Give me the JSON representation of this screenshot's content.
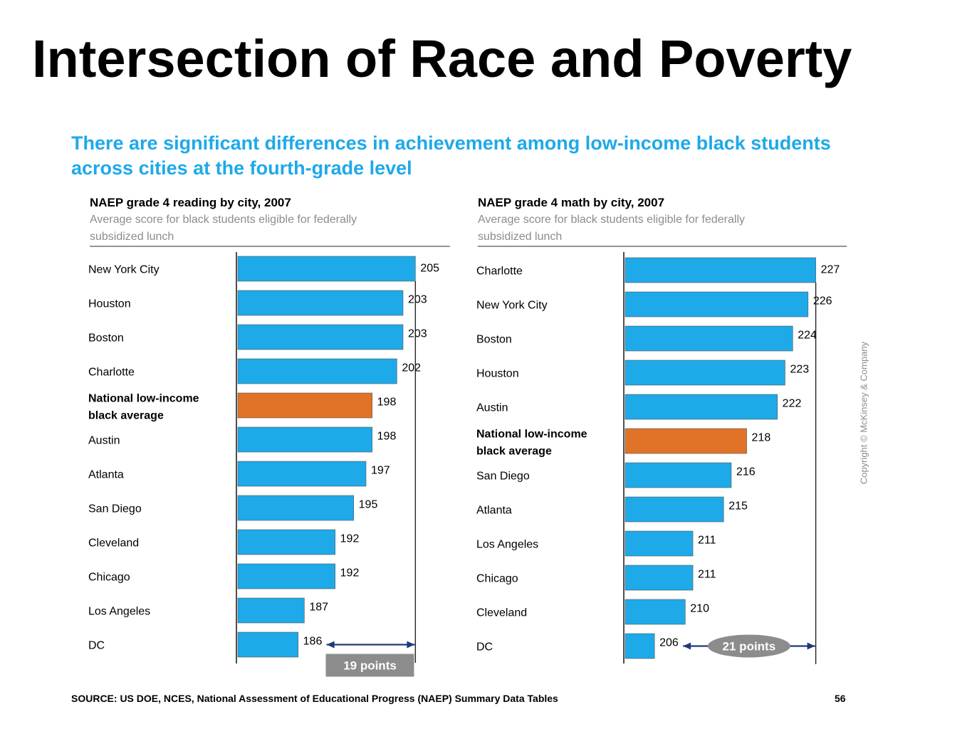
{
  "slide": {
    "title": "Intersection of Race and Poverty",
    "headline": "There are significant differences in achievement among low-income black students across cities at the fourth-grade level",
    "copyright": "Copyright © McKinsey & Company",
    "source": "SOURCE: US DOE, NCES, National Assessment of Educational Progress (NAEP) Summary Data Tables",
    "page_number": "56"
  },
  "colors": {
    "bar": "#1ea9e9",
    "highlight_bar": "#e07327",
    "headline": "#1ea9e9",
    "subtitle": "#8c8c8c",
    "gap_label_bg": "#8c8c8c",
    "arrow": "#1f3a7a"
  },
  "chart_data": [
    {
      "type": "bar",
      "orientation": "horizontal",
      "title": "NAEP grade 4 reading by city, 2007",
      "subtitle": "Average score for black students eligible for federally subsidized lunch",
      "categories": [
        "New York City",
        "Houston",
        "Boston",
        "Charlotte",
        "National low-income black average",
        "Austin",
        "Atlanta",
        "San Diego",
        "Cleveland",
        "Chicago",
        "Los Angeles",
        "DC"
      ],
      "category_lines": [
        [
          "New York City"
        ],
        [
          "Houston"
        ],
        [
          "Boston"
        ],
        [
          "Charlotte"
        ],
        [
          "National low-income",
          "black average"
        ],
        [
          "Austin"
        ],
        [
          "Atlanta"
        ],
        [
          "San Diego"
        ],
        [
          "Cleveland"
        ],
        [
          "Chicago"
        ],
        [
          "Los Angeles"
        ],
        [
          "DC"
        ]
      ],
      "values": [
        205,
        203,
        203,
        202,
        198,
        198,
        197,
        195,
        192,
        192,
        187,
        186
      ],
      "highlight_index": 4,
      "annotation": {
        "text": "19 points",
        "from": 186,
        "to": 205,
        "style": "box"
      },
      "xlim": [
        176,
        206
      ],
      "grid": false
    },
    {
      "type": "bar",
      "orientation": "horizontal",
      "title": "NAEP grade 4 math by city, 2007",
      "subtitle": "Average score for black students eligible for federally subsidized lunch",
      "categories": [
        "Charlotte",
        "New York City",
        "Boston",
        "Houston",
        "Austin",
        "National low-income black average",
        "San Diego",
        "Atlanta",
        "Los Angeles",
        "Chicago",
        "Cleveland",
        "DC"
      ],
      "category_lines": [
        [
          "Charlotte"
        ],
        [
          "New York City"
        ],
        [
          "Boston"
        ],
        [
          "Houston"
        ],
        [
          "Austin"
        ],
        [
          "National low-income",
          "black average"
        ],
        [
          "San Diego"
        ],
        [
          "Atlanta"
        ],
        [
          "Los Angeles"
        ],
        [
          "Chicago"
        ],
        [
          "Cleveland"
        ],
        [
          "DC"
        ]
      ],
      "values": [
        227,
        226,
        224,
        223,
        222,
        218,
        216,
        215,
        211,
        211,
        210,
        206
      ],
      "highlight_index": 5,
      "annotation": {
        "text": "21 points",
        "from": 206,
        "to": 227,
        "style": "ellipse"
      },
      "xlim": [
        202,
        227.5
      ],
      "grid": false
    }
  ]
}
